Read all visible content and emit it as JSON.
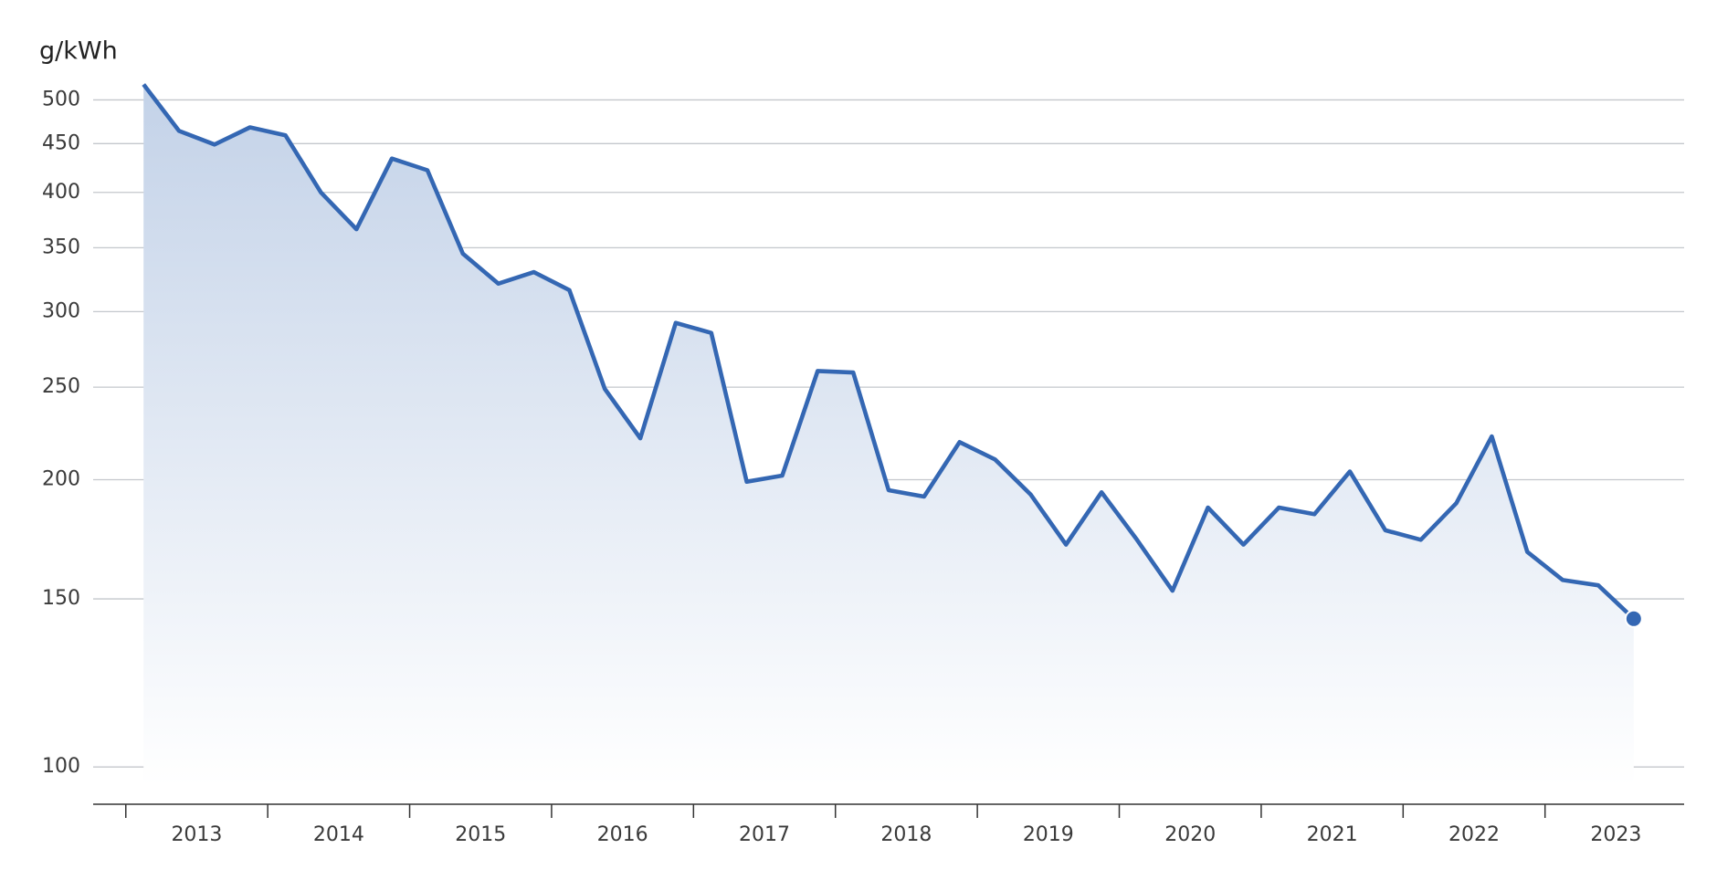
{
  "chart_data": {
    "type": "area-line",
    "y_axis_label": "g/kWh",
    "log_scale_y": true,
    "grid": true,
    "color": "#3467b3",
    "x": [
      2013.125,
      2013.375,
      2013.625,
      2013.875,
      2014.125,
      2014.375,
      2014.625,
      2014.875,
      2015.125,
      2015.375,
      2015.625,
      2015.875,
      2016.125,
      2016.375,
      2016.625,
      2016.875,
      2017.125,
      2017.375,
      2017.625,
      2017.875,
      2018.125,
      2018.375,
      2018.625,
      2018.875,
      2019.125,
      2019.375,
      2019.625,
      2019.875,
      2020.125,
      2020.375,
      2020.625,
      2020.875,
      2021.125,
      2021.375,
      2021.625,
      2021.875,
      2022.125,
      2022.375,
      2022.625,
      2022.875,
      2023.125,
      2023.375,
      2023.625
    ],
    "values": [
      519,
      464,
      449,
      468,
      459,
      400,
      366,
      434,
      422,
      345,
      321,
      330,
      316,
      249,
      221,
      292,
      285,
      199,
      202,
      260,
      259,
      195,
      192,
      219,
      210,
      193,
      171,
      194,
      173,
      153,
      187,
      171,
      187,
      184,
      204,
      177,
      173,
      189,
      222,
      168,
      157,
      155,
      143
    ],
    "xlim": [
      2012.77,
      2023.98
    ],
    "xticks": [
      {
        "value": 2013,
        "label": "2013"
      },
      {
        "value": 2014,
        "label": "2014"
      },
      {
        "value": 2015,
        "label": "2015"
      },
      {
        "value": 2016,
        "label": "2016"
      },
      {
        "value": 2017,
        "label": "2017"
      },
      {
        "value": 2018,
        "label": "2018"
      },
      {
        "value": 2019,
        "label": "2019"
      },
      {
        "value": 2020,
        "label": "2020"
      },
      {
        "value": 2021,
        "label": "2021"
      },
      {
        "value": 2022,
        "label": "2022"
      },
      {
        "value": 2023,
        "label": "2023"
      }
    ],
    "ylim": [
      91.4,
      543
    ],
    "yticks": [
      100,
      150,
      200,
      250,
      300,
      350,
      400,
      450,
      500
    ]
  }
}
